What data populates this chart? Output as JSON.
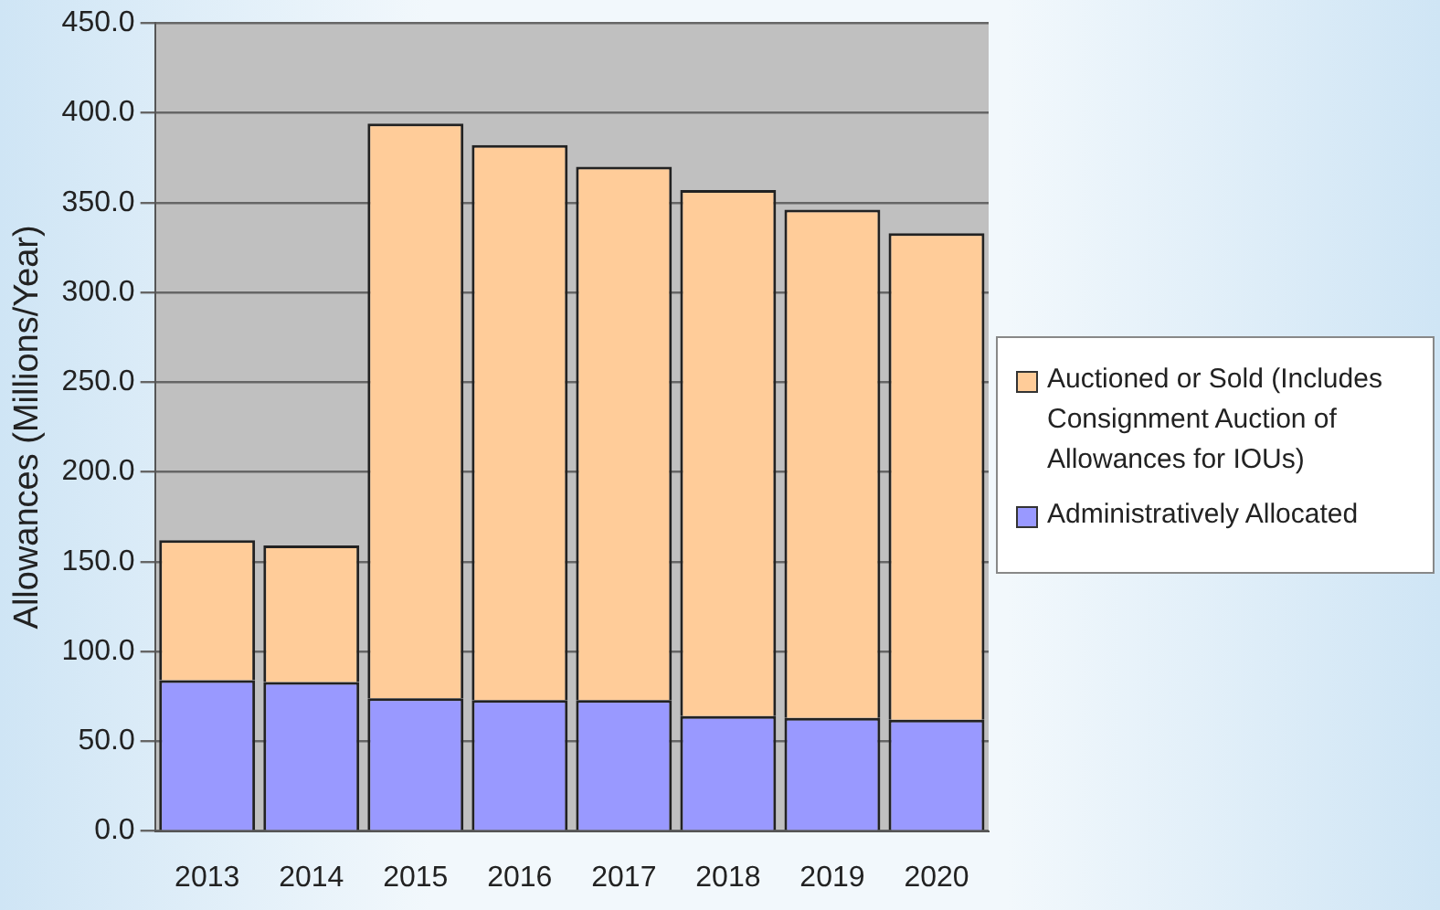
{
  "chart_data": {
    "type": "bar",
    "stacked": true,
    "ylabel": "Allowances (Millions/Year)",
    "categories": [
      "2013",
      "2014",
      "2015",
      "2016",
      "2017",
      "2018",
      "2019",
      "2020"
    ],
    "series": [
      {
        "name": "Administratively Allocated",
        "color": "#9999ff",
        "values": [
          84,
          83,
          74,
          73,
          73,
          64,
          63,
          62
        ]
      },
      {
        "name": "Auctioned or Sold (Includes Consignment Auction of Allowances for IOUs)",
        "color": "#ffcc99",
        "values": [
          78,
          76,
          320,
          309,
          297,
          293,
          283,
          271
        ]
      }
    ],
    "ylim": [
      0,
      450
    ],
    "yticks": [
      {
        "value": 0,
        "label": "0.0"
      },
      {
        "value": 50,
        "label": "50.0"
      },
      {
        "value": 100,
        "label": "100.0"
      },
      {
        "value": 150,
        "label": "150.0"
      },
      {
        "value": 200,
        "label": "200.0"
      },
      {
        "value": 250,
        "label": "250.0"
      },
      {
        "value": 300,
        "label": "300.0"
      },
      {
        "value": 350,
        "label": "350.0"
      },
      {
        "value": 400,
        "label": "400.0"
      },
      {
        "value": 450,
        "label": "450.0"
      }
    ],
    "grid": "y",
    "legend": "right"
  }
}
